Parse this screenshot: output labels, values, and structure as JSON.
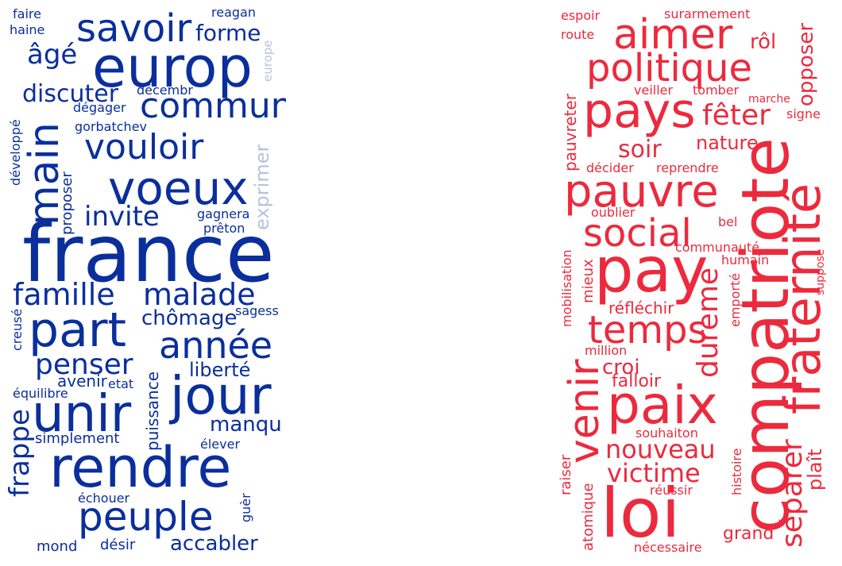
{
  "colors": {
    "blue": "#0a2f9c",
    "blue_light": "#b8c2dc",
    "red": "#ec2a3d"
  },
  "blue_cloud": {
    "words": {
      "faire": "faire",
      "reagan": "reagan",
      "haine": "haine",
      "savoir": "savoir",
      "forme": "forme",
      "europe": "europe",
      "europ": "europ",
      "age": "âgé",
      "commun": "commun",
      "discuter": "discuter",
      "decembr": "décembr",
      "degager": "dégager",
      "main": "main",
      "gorbatchev": "gorbatchev",
      "vouloir": "vouloir",
      "developpe": "développé",
      "voeux": "voeux",
      "exprimer": "exprimer",
      "proposer": "proposer",
      "invite": "invite",
      "gagnera": "gagnera",
      "preton": "prêton",
      "france": "france",
      "famille": "famille",
      "malade": "malade",
      "sagess": "sagess",
      "creuse": "creusé",
      "part": "part",
      "chomage": "chômage",
      "annee": "année",
      "penser": "penser",
      "liberte": "liberté",
      "avenir": "avenir",
      "etat": "etat",
      "equilibre": "équilibre",
      "puissance": "puissance",
      "jour": "jour",
      "unir": "unir",
      "frappe": "frappe",
      "manqu": "manqu",
      "simplement": "simplement",
      "elever": "élever",
      "rendre": "rendre",
      "echouer": "échouer",
      "guer": "guèr",
      "peuple": "peuple",
      "mond": "mond",
      "desir": "désir",
      "accabler": "accabler"
    }
  },
  "red_cloud": {
    "words": {
      "espoir": "espoir",
      "surarmement": "surarmement",
      "aimer": "aimer",
      "route": "route",
      "rol": "rôl",
      "opposer": "opposer",
      "politique": "politique",
      "veiller": "veiller",
      "tomber": "tomber",
      "marche": "marche",
      "pays": "pays",
      "feter": "fêter",
      "signe": "signe",
      "pauvreter": "pauvreter",
      "soir": "soir",
      "nature": "nature",
      "decider": "décider",
      "reprendre": "reprendre",
      "fraternite": "fraternité",
      "pauvre": "pauvre",
      "oublier": "oublier",
      "bel": "bel",
      "social": "social",
      "communaute": "communauté",
      "humain": "humain",
      "compatriote": "compatriote",
      "pay": "pay",
      "mobilisation": "mobilisation",
      "mieux": "mieux",
      "emporte": "emporté",
      "suppose": "suppose",
      "dureme": "dureme",
      "reflechir": "réfléchir",
      "temps": "temps",
      "million": "million",
      "croi": "croi",
      "venir": "venir",
      "falloir": "falloir",
      "paix": "paix",
      "separer": "séparer",
      "plait": "plaît",
      "souhaiton": "souhaiton",
      "nouveau": "nouveau",
      "raiser": "raiser",
      "victime": "victime",
      "histoire": "histoire",
      "atomique": "atomique",
      "reussir": "réussir",
      "loi": "loi",
      "grand": "grand",
      "necessaire": "nécessaire"
    }
  }
}
